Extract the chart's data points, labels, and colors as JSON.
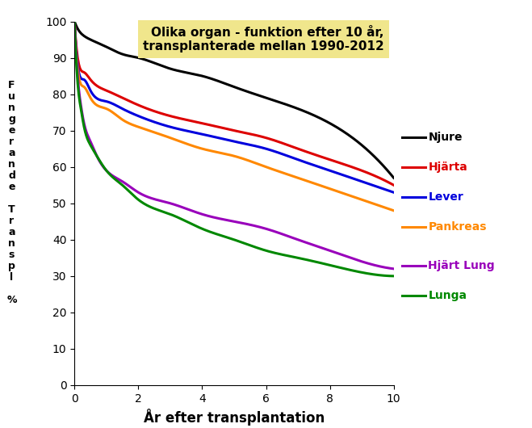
{
  "title_line1": "Olika organ - funktion efter 10 år,",
  "title_line2": "transplanterade mellan 1990-2012",
  "title_bg_color": "#f0e68c",
  "xlabel": "År efter transplantation",
  "xlim": [
    0,
    10
  ],
  "ylim": [
    0,
    100
  ],
  "xticks": [
    0,
    2,
    4,
    6,
    8,
    10
  ],
  "yticks": [
    0,
    10,
    20,
    30,
    40,
    50,
    60,
    70,
    80,
    90,
    100
  ],
  "series": [
    {
      "name": "Njure",
      "color": "#000000",
      "x": [
        0,
        0.1,
        0.3,
        0.5,
        1,
        1.5,
        2,
        3,
        4,
        5,
        6,
        7,
        8,
        9,
        10
      ],
      "y": [
        100,
        98,
        96,
        95,
        93,
        91,
        90,
        87,
        85,
        82,
        79,
        76,
        72,
        66,
        57
      ]
    },
    {
      "name": "Hjärta",
      "color": "#dd0000",
      "x": [
        0,
        0.1,
        0.3,
        0.5,
        1,
        1.5,
        2,
        3,
        4,
        5,
        6,
        7,
        8,
        9,
        10
      ],
      "y": [
        100,
        90,
        86,
        84,
        81,
        79,
        77,
        74,
        72,
        70,
        68,
        65,
        62,
        59,
        55
      ]
    },
    {
      "name": "Lever",
      "color": "#0000dd",
      "x": [
        0,
        0.1,
        0.3,
        0.5,
        1,
        1.5,
        2,
        3,
        4,
        5,
        6,
        7,
        8,
        9,
        10
      ],
      "y": [
        100,
        88,
        84,
        81,
        78,
        76,
        74,
        71,
        69,
        67,
        65,
        62,
        59,
        56,
        53
      ]
    },
    {
      "name": "Pankreas",
      "color": "#ff8800",
      "x": [
        0,
        0.1,
        0.3,
        0.5,
        1,
        1.5,
        2,
        3,
        4,
        5,
        6,
        7,
        8,
        9,
        10
      ],
      "y": [
        100,
        87,
        82,
        79,
        76,
        73,
        71,
        68,
        65,
        63,
        60,
        57,
        54,
        51,
        48
      ]
    },
    {
      "name": "Hjärt Lung",
      "color": "#9900bb",
      "x": [
        0,
        0.05,
        0.1,
        0.2,
        0.3,
        0.5,
        0.7,
        1,
        1.5,
        2,
        3,
        4,
        5,
        6,
        7,
        8,
        9,
        10
      ],
      "y": [
        100,
        92,
        85,
        77,
        72,
        67,
        63,
        59,
        56,
        53,
        50,
        47,
        45,
        43,
        40,
        37,
        34,
        32
      ]
    },
    {
      "name": "Lunga",
      "color": "#008800",
      "x": [
        0,
        0.05,
        0.1,
        0.2,
        0.3,
        0.5,
        0.7,
        1,
        1.5,
        2,
        3,
        4,
        5,
        6,
        7,
        8,
        9,
        10
      ],
      "y": [
        100,
        90,
        83,
        76,
        71,
        66,
        63,
        59,
        55,
        51,
        47,
        43,
        40,
        37,
        35,
        33,
        31,
        30
      ]
    }
  ],
  "legend_labels": [
    "Njure",
    "Hjärta",
    "Lever",
    "Pankreas",
    "Hjärt Lung",
    "Lunga"
  ],
  "legend_colors": [
    "#000000",
    "#dd0000",
    "#0000dd",
    "#ff8800",
    "#9900bb",
    "#008800"
  ],
  "ylabel_letters": [
    "F",
    "u",
    "n",
    "g",
    "e",
    "r",
    "a",
    "n",
    "d",
    "e",
    "",
    "T",
    "r",
    "a",
    "n",
    "s",
    "p",
    "l",
    "",
    "%"
  ]
}
